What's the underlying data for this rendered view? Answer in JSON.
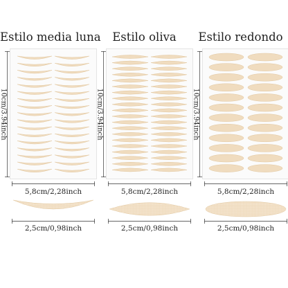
{
  "colors": {
    "sticker": "#f0dcbf",
    "sticker_edge": "#e2c79f",
    "dots": "#ffffff",
    "rule": "#333333"
  },
  "panels": [
    {
      "title": "Estilo media luna",
      "height_label": "10cm/3.94inch",
      "width_label": "5,8cm/2,28inch",
      "size_label": "2,5cm/0,98inch",
      "shape": "crescent"
    },
    {
      "title": "Estilo oliva",
      "height_label": "10cm/3.94inch",
      "width_label": "5,8cm/2,28inch",
      "size_label": "2,5cm/0,98inch",
      "shape": "olive"
    },
    {
      "title": "Estilo redondo",
      "height_label": "10cm/3.94inch",
      "width_label": "5,8cm/2,28inch",
      "size_label": "2,5cm/0,98inch",
      "shape": "round"
    }
  ]
}
